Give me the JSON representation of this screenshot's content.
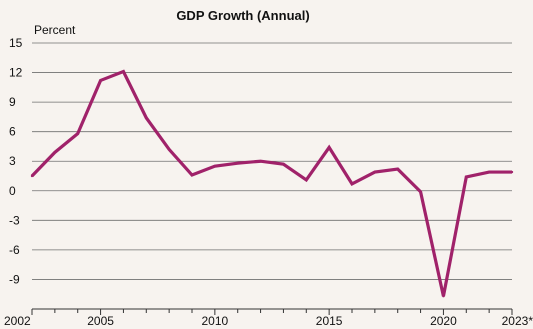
{
  "chart_data": {
    "type": "line",
    "title": "GDP Growth (Annual)",
    "xlabel": "",
    "ylabel": "Percent",
    "ylim": [
      -12,
      15
    ],
    "yticks": [
      15,
      12,
      9,
      6,
      3,
      0,
      -3,
      -6,
      -9
    ],
    "xlim": [
      2002,
      2023
    ],
    "xtick_labels": [
      {
        "x": 2002,
        "label": "2002"
      },
      {
        "x": 2005,
        "label": "2005"
      },
      {
        "x": 2010,
        "label": "2010"
      },
      {
        "x": 2015,
        "label": "2015"
      },
      {
        "x": 2020,
        "label": "2020"
      },
      {
        "x": 2023,
        "label": "2023*"
      }
    ],
    "grid": true,
    "colors": {
      "series": "#a0226a",
      "background": "#f7f3ef"
    },
    "series": [
      {
        "name": "",
        "x": [
          2002,
          2003,
          2004,
          2005,
          2006,
          2007,
          2008,
          2009,
          2010,
          2011,
          2012,
          2013,
          2014,
          2015,
          2016,
          2017,
          2018,
          2019,
          2020,
          2021,
          2022,
          2023
        ],
        "values": [
          1.5,
          3.9,
          5.8,
          11.2,
          12.1,
          7.4,
          4.2,
          1.6,
          2.5,
          2.8,
          3.0,
          2.7,
          1.1,
          4.4,
          0.7,
          1.9,
          2.2,
          -0.1,
          -10.7,
          1.4,
          1.9,
          1.9
        ]
      }
    ]
  }
}
